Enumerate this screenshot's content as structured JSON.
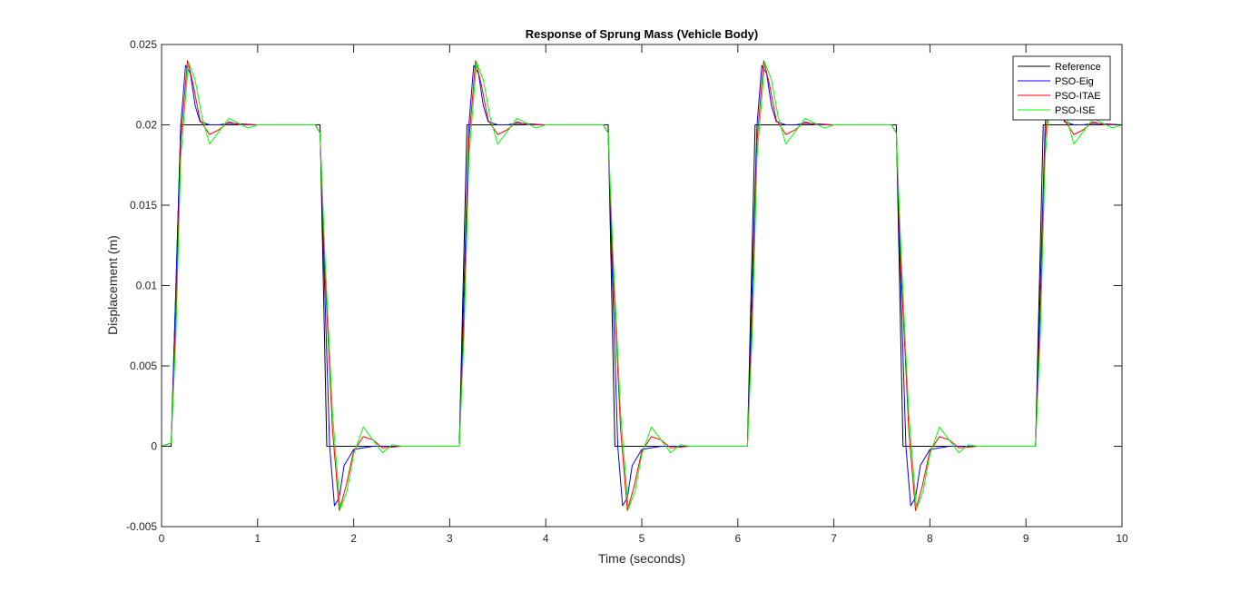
{
  "chart_data": {
    "type": "line",
    "title": "Response of Sprung Mass (Vehicle Body)",
    "xlabel": "Time (seconds)",
    "ylabel": "Displacement (m)",
    "xlim": [
      0,
      10
    ],
    "ylim": [
      -0.005,
      0.025
    ],
    "xticks": [
      0,
      1,
      2,
      3,
      4,
      5,
      6,
      7,
      8,
      9,
      10
    ],
    "xtick_labels": [
      "0",
      "1",
      "2",
      "3",
      "4",
      "5",
      "6",
      "7",
      "8",
      "9",
      "10"
    ],
    "yticks": [
      -0.005,
      0,
      0.005,
      0.01,
      0.015,
      0.02,
      0.025
    ],
    "ytick_labels": [
      "-0.005",
      "0",
      "0.005",
      "0.01",
      "0.015",
      "0.02",
      "0.025"
    ],
    "grid": false,
    "legend_location": "top-right",
    "series": [
      {
        "name": "Reference",
        "color": "#000000",
        "x": [
          0,
          0.1,
          0.2,
          0.22,
          1.65,
          1.72,
          1.74,
          3.1,
          3.18,
          3.2,
          4.65,
          4.72,
          4.74,
          6.1,
          6.18,
          6.2,
          7.65,
          7.72,
          7.74,
          9.1,
          9.18,
          9.2,
          10
        ],
        "y": [
          0,
          0,
          0.02,
          0.02,
          0.02,
          0.0,
          0.0,
          0.0,
          0.02,
          0.02,
          0.02,
          0.0,
          0.0,
          0.0,
          0.02,
          0.02,
          0.02,
          0.0,
          0.0,
          0.0,
          0.02,
          0.02,
          0.02
        ]
      },
      {
        "name": "PSO-Eig",
        "color": "#0000ff",
        "x": [
          0,
          0.1,
          0.15,
          0.2,
          0.25,
          0.3,
          0.35,
          0.4,
          0.5,
          0.6,
          0.7,
          1.0,
          1.6,
          1.65,
          1.7,
          1.75,
          1.8,
          1.85,
          1.9,
          2.0,
          2.2,
          2.5,
          3.1,
          3.15,
          3.2,
          3.25,
          3.3,
          3.35,
          3.4,
          3.5,
          3.6,
          3.7,
          4.0,
          4.6,
          4.65,
          4.7,
          4.75,
          4.8,
          4.85,
          4.9,
          5.0,
          5.2,
          5.5,
          6.1,
          6.15,
          6.2,
          6.25,
          6.3,
          6.35,
          6.4,
          6.5,
          6.6,
          6.7,
          7.0,
          7.6,
          7.65,
          7.7,
          7.75,
          7.8,
          7.85,
          7.9,
          8.0,
          8.2,
          8.5,
          9.1,
          9.15,
          9.2,
          9.25,
          9.3,
          9.35,
          9.4,
          9.5,
          9.6,
          9.7,
          10
        ],
        "y": [
          0,
          0.0002,
          0.01,
          0.02,
          0.0237,
          0.0232,
          0.0212,
          0.0202,
          0.02,
          0.02,
          0.0201,
          0.02,
          0.02,
          0.0195,
          0.0095,
          0.0,
          -0.0037,
          -0.0032,
          -0.0012,
          -0.0002,
          0.0,
          0.0,
          0.0,
          0.01,
          0.02,
          0.0237,
          0.0232,
          0.0212,
          0.0202,
          0.02,
          0.02,
          0.0201,
          0.02,
          0.02,
          0.0195,
          0.0095,
          0.0,
          -0.0037,
          -0.0032,
          -0.0012,
          -0.0002,
          0.0,
          0.0,
          0.0,
          0.01,
          0.02,
          0.0237,
          0.0232,
          0.0212,
          0.0202,
          0.02,
          0.02,
          0.0201,
          0.02,
          0.02,
          0.0195,
          0.0095,
          0.0,
          -0.0037,
          -0.0032,
          -0.0012,
          -0.0002,
          0.0,
          0.0,
          0.0,
          0.01,
          0.02,
          0.0237,
          0.0232,
          0.0212,
          0.0202,
          0.02,
          0.02,
          0.0201,
          0.02
        ]
      },
      {
        "name": "PSO-ITAE",
        "color": "#ff0000",
        "x": [
          0,
          0.1,
          0.15,
          0.2,
          0.27,
          0.33,
          0.4,
          0.5,
          0.6,
          0.7,
          0.8,
          1.0,
          1.6,
          1.65,
          1.7,
          1.78,
          1.85,
          1.92,
          2.0,
          2.1,
          2.2,
          2.3,
          2.5,
          3.1,
          3.15,
          3.2,
          3.27,
          3.33,
          3.4,
          3.5,
          3.6,
          3.7,
          3.8,
          4.0,
          4.6,
          4.65,
          4.7,
          4.78,
          4.85,
          4.92,
          5.0,
          5.1,
          5.2,
          5.3,
          5.5,
          6.1,
          6.15,
          6.2,
          6.27,
          6.33,
          6.4,
          6.5,
          6.6,
          6.7,
          6.8,
          7.0,
          7.6,
          7.65,
          7.7,
          7.78,
          7.85,
          7.92,
          8.0,
          8.1,
          8.2,
          8.3,
          8.5,
          9.1,
          9.15,
          9.2,
          9.27,
          9.33,
          9.4,
          9.5,
          9.6,
          9.7,
          9.8,
          10
        ],
        "y": [
          0,
          0.0002,
          0.008,
          0.019,
          0.024,
          0.0225,
          0.0203,
          0.0194,
          0.0197,
          0.0202,
          0.02,
          0.02,
          0.02,
          0.0195,
          0.011,
          0.001,
          -0.004,
          -0.0025,
          -0.0003,
          0.0006,
          0.0004,
          -0.0001,
          0.0,
          0.0,
          0.008,
          0.019,
          0.024,
          0.0225,
          0.0203,
          0.0194,
          0.0197,
          0.0202,
          0.02,
          0.02,
          0.02,
          0.0195,
          0.011,
          0.001,
          -0.004,
          -0.0025,
          -0.0003,
          0.0006,
          0.0004,
          -0.0001,
          0.0,
          0.0,
          0.008,
          0.019,
          0.024,
          0.0225,
          0.0203,
          0.0194,
          0.0197,
          0.0202,
          0.02,
          0.02,
          0.02,
          0.0195,
          0.011,
          0.001,
          -0.004,
          -0.0025,
          -0.0003,
          0.0006,
          0.0004,
          -0.0001,
          0.0,
          0.0,
          0.008,
          0.019,
          0.024,
          0.0225,
          0.0203,
          0.0194,
          0.0197,
          0.0202,
          0.02,
          0.02
        ]
      },
      {
        "name": "PSO-ISE",
        "color": "#00ff00",
        "x": [
          0,
          0.1,
          0.15,
          0.2,
          0.28,
          0.35,
          0.42,
          0.5,
          0.6,
          0.7,
          0.8,
          0.9,
          1.0,
          1.6,
          1.65,
          1.7,
          1.78,
          1.86,
          1.93,
          2.0,
          2.1,
          2.2,
          2.3,
          2.4,
          2.5,
          3.1,
          3.15,
          3.2,
          3.28,
          3.35,
          3.42,
          3.5,
          3.6,
          3.7,
          3.8,
          3.9,
          4.0,
          4.6,
          4.65,
          4.7,
          4.78,
          4.86,
          4.93,
          5.0,
          5.1,
          5.2,
          5.3,
          5.4,
          5.5,
          6.1,
          6.15,
          6.2,
          6.28,
          6.35,
          6.42,
          6.5,
          6.6,
          6.7,
          6.8,
          6.9,
          7.0,
          7.6,
          7.65,
          7.7,
          7.78,
          7.86,
          7.93,
          8.0,
          8.1,
          8.2,
          8.3,
          8.4,
          8.5,
          9.1,
          9.15,
          9.2,
          9.28,
          9.35,
          9.42,
          9.5,
          9.6,
          9.7,
          9.8,
          9.9,
          10
        ],
        "y": [
          0,
          0.0002,
          0.007,
          0.018,
          0.0239,
          0.0228,
          0.0205,
          0.0188,
          0.0196,
          0.0204,
          0.0201,
          0.0198,
          0.02,
          0.02,
          0.0195,
          0.012,
          0.002,
          -0.0039,
          -0.0028,
          -0.0005,
          0.0012,
          0.0004,
          -0.0004,
          0.0001,
          0.0,
          0.0,
          0.007,
          0.018,
          0.0239,
          0.0228,
          0.0205,
          0.0188,
          0.0196,
          0.0204,
          0.0201,
          0.0198,
          0.02,
          0.02,
          0.0195,
          0.012,
          0.002,
          -0.0039,
          -0.0028,
          -0.0005,
          0.0012,
          0.0004,
          -0.0004,
          0.0001,
          0.0,
          0.0,
          0.007,
          0.018,
          0.0239,
          0.0228,
          0.0205,
          0.0188,
          0.0196,
          0.0204,
          0.0201,
          0.0198,
          0.02,
          0.02,
          0.0195,
          0.012,
          0.002,
          -0.0039,
          -0.0028,
          -0.0005,
          0.0012,
          0.0004,
          -0.0004,
          0.0001,
          0.0,
          0.0,
          0.007,
          0.018,
          0.0239,
          0.0228,
          0.0205,
          0.0188,
          0.0196,
          0.0204,
          0.0201,
          0.0198,
          0.02
        ]
      }
    ]
  }
}
